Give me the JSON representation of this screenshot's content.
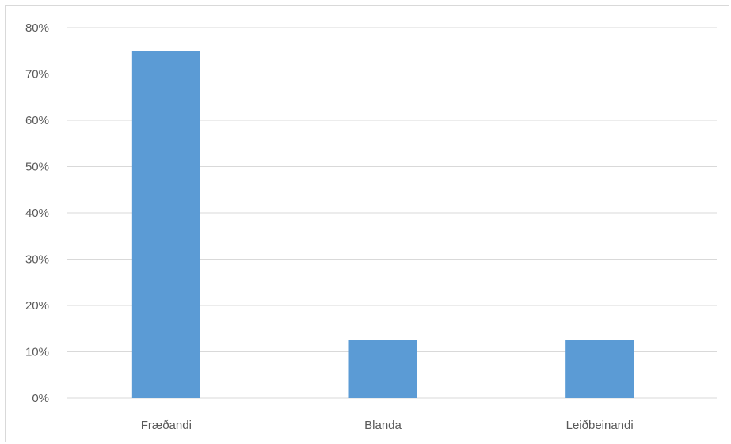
{
  "chart_data": {
    "type": "bar",
    "categories": [
      "Fræðandi",
      "Blanda",
      "Leiðbeinandi"
    ],
    "values": [
      75,
      12.5,
      12.5
    ],
    "ylim": [
      0,
      80
    ],
    "ytick_step": 10,
    "ytick_labels": [
      "0%",
      "10%",
      "20%",
      "30%",
      "40%",
      "50%",
      "60%",
      "70%",
      "80%"
    ],
    "grid": true,
    "legend": "none",
    "bar_color": "#5b9bd5",
    "grid_color": "#d9d9d9",
    "text_color": "#595959"
  }
}
